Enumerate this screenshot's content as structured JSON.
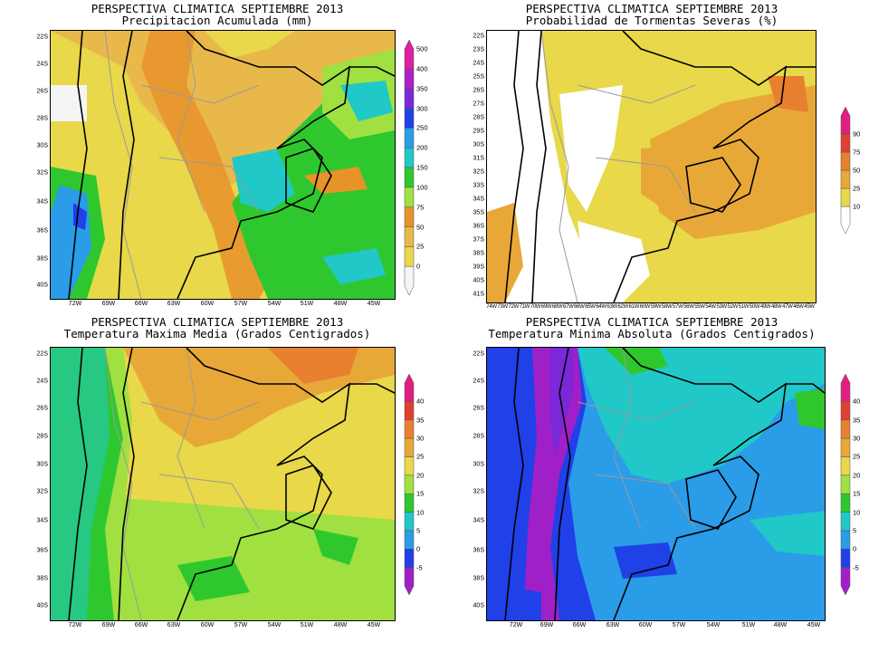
{
  "colors": {
    "border": "#000000",
    "province_lines": "#9a9a9a"
  },
  "panels": [
    {
      "id": "precip",
      "title_line1": "PERSPECTIVA CLIMATICA SEPTIEMBRE 2013",
      "title_line2": "Precipitacion Acumulada (mm)",
      "y_ticks": [
        "22S",
        "24S",
        "26S",
        "28S",
        "30S",
        "32S",
        "34S",
        "36S",
        "38S",
        "40S"
      ],
      "x_ticks": [
        "72W",
        "69W",
        "66W",
        "63W",
        "60W",
        "57W",
        "54W",
        "51W",
        "48W",
        "45W"
      ],
      "colorbar": {
        "labels": [
          "0",
          "25",
          "50",
          "75",
          "100",
          "150",
          "200",
          "250",
          "300",
          "350",
          "400",
          "500"
        ],
        "colors": [
          "#f5f5f5",
          "#e8d84a",
          "#e8b84a",
          "#e8922a",
          "#a0e040",
          "#2ec82e",
          "#20c8c8",
          "#2a9ce8",
          "#2040e8",
          "#7a28d8",
          "#b020c8",
          "#e020a0"
        ]
      }
    },
    {
      "id": "storms",
      "title_line1": "PERSPECTIVA CLIMATICA SEPTIEMBRE 2013",
      "title_line2": "Probabilidad de Tormentas Severas (%)",
      "y_ticks": [
        "22S",
        "23S",
        "24S",
        "25S",
        "26S",
        "27S",
        "28S",
        "29S",
        "30S",
        "31S",
        "32S",
        "33S",
        "34S",
        "35S",
        "36S",
        "37S",
        "38S",
        "39S",
        "40S",
        "41S"
      ],
      "x_ticks": [
        "74W",
        "73W",
        "72W",
        "71W",
        "70W",
        "69W",
        "68W",
        "67W",
        "66W",
        "65W",
        "64W",
        "63W",
        "62W",
        "61W",
        "60W",
        "59W",
        "58W",
        "57W",
        "56W",
        "55W",
        "54W",
        "53W",
        "52W",
        "51W",
        "50W",
        "49W",
        "48W",
        "47W",
        "46W",
        "45W"
      ],
      "colorbar": {
        "labels": [
          "10",
          "25",
          "50",
          "75",
          "90"
        ],
        "colors": [
          "#ffffff",
          "#e8d84a",
          "#e8a838",
          "#e88030",
          "#e04030",
          "#e02080"
        ]
      }
    },
    {
      "id": "tmax",
      "title_line1": "PERSPECTIVA CLIMATICA SEPTIEMBRE 2013",
      "title_line2": "Temperatura Maxima Media (Grados Centigrados)",
      "y_ticks": [
        "22S",
        "24S",
        "26S",
        "28S",
        "30S",
        "32S",
        "34S",
        "36S",
        "38S",
        "40S"
      ],
      "x_ticks": [
        "72W",
        "69W",
        "66W",
        "63W",
        "60W",
        "57W",
        "54W",
        "51W",
        "48W",
        "45W"
      ],
      "colorbar": {
        "labels": [
          "-5",
          "0",
          "5",
          "10",
          "15",
          "20",
          "25",
          "30",
          "35",
          "40"
        ],
        "colors": [
          "#a020c8",
          "#2040e8",
          "#2a9ce8",
          "#20c8c8",
          "#2ec82e",
          "#a0e040",
          "#e8d84a",
          "#e8a838",
          "#e88030",
          "#e04030",
          "#e02080"
        ]
      }
    },
    {
      "id": "tmin",
      "title_line1": "PERSPECTIVA CLIMATICA SEPTIEMBRE 2013",
      "title_line2": "Temperatura Minima Absoluta (Grados Centigrados)",
      "y_ticks": [
        "22S",
        "24S",
        "26S",
        "28S",
        "30S",
        "32S",
        "34S",
        "36S",
        "38S",
        "40S"
      ],
      "x_ticks": [
        "72W",
        "69W",
        "66W",
        "63W",
        "60W",
        "57W",
        "54W",
        "51W",
        "48W",
        "45W"
      ],
      "colorbar": {
        "labels": [
          "-5",
          "0",
          "5",
          "10",
          "15",
          "20",
          "25",
          "30",
          "35",
          "40"
        ],
        "colors": [
          "#a020c8",
          "#2040e8",
          "#2a9ce8",
          "#20c8c8",
          "#2ec82e",
          "#a0e040",
          "#e8d84a",
          "#e8a838",
          "#e88030",
          "#e04030",
          "#e02080"
        ]
      }
    }
  ]
}
